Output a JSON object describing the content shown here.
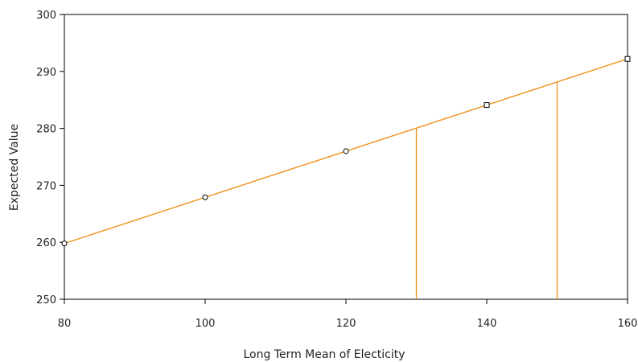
{
  "chart_data": {
    "type": "line",
    "title": "",
    "xlabel": "Long Term Mean of Electicity",
    "ylabel": "Expected Value",
    "xlim": [
      80,
      160
    ],
    "ylim": [
      250,
      300
    ],
    "xticks": [
      80,
      100,
      120,
      140,
      160
    ],
    "yticks": [
      250,
      260,
      270,
      280,
      290,
      300
    ],
    "grid": false,
    "legend": "none",
    "series": [
      {
        "x": [
          80,
          160
        ],
        "y": [
          259.8,
          292.2
        ],
        "color": "#f0921e"
      }
    ],
    "markers": [
      {
        "shape": "circle",
        "x": 80,
        "y": 259.8
      },
      {
        "shape": "circle",
        "x": 100,
        "y": 267.9
      },
      {
        "shape": "circle",
        "x": 120,
        "y": 276.0
      },
      {
        "shape": "square",
        "x": 140,
        "y": 284.1
      },
      {
        "shape": "square",
        "x": 160,
        "y": 292.2
      }
    ],
    "reference_lines": [
      {
        "x": 130,
        "y": 280.0
      },
      {
        "x": 150,
        "y": 288.1
      }
    ],
    "colors": {
      "line": "#f0921e",
      "axis": "#000000",
      "marker": "#000000"
    }
  }
}
